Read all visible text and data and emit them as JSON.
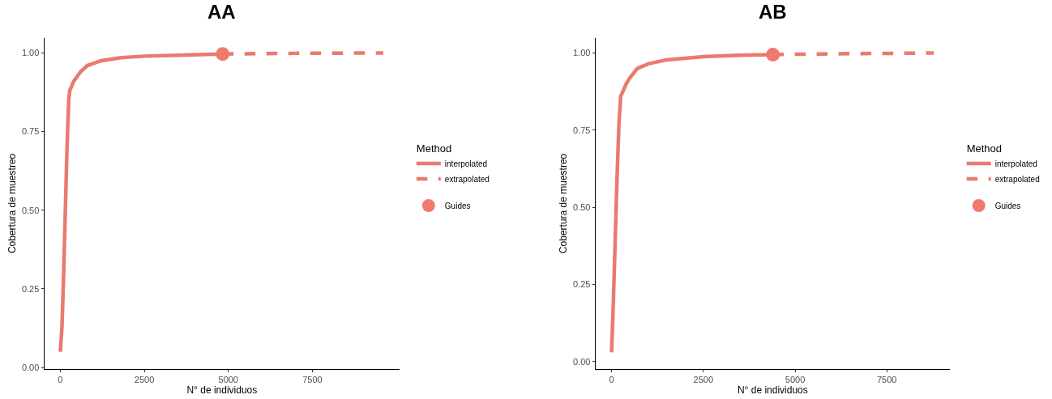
{
  "chart_data": [
    {
      "type": "line",
      "title": "AA",
      "xlabel": "N° de individuos",
      "ylabel": "Cobertura de muestreo",
      "legend_title": "Method",
      "legend": "right",
      "xlim": [
        -480,
        10100
      ],
      "ylim": [
        -0.005,
        1.048
      ],
      "xticks": [
        0,
        2500,
        5000,
        7500
      ],
      "yticks": [
        {
          "value": 0,
          "label": "0.00"
        },
        {
          "value": 0.25,
          "label": "0.25"
        },
        {
          "value": 0.5,
          "label": "0.50"
        },
        {
          "value": 0.75,
          "label": "0.75"
        },
        {
          "value": 1,
          "label": "1.00"
        }
      ],
      "series": [
        {
          "name": "interpolated",
          "color": "#ea7a6e",
          "line_style": "solid",
          "x": [
            0,
            50,
            100,
            150,
            200,
            250,
            280,
            400,
            600,
            800,
            1200,
            1800,
            2500,
            3500,
            4830
          ],
          "values": [
            0.05,
            0.13,
            0.3,
            0.5,
            0.7,
            0.85,
            0.88,
            0.91,
            0.94,
            0.96,
            0.975,
            0.985,
            0.99,
            0.993,
            0.997
          ]
        },
        {
          "name": "extrapolated",
          "color": "#ea7a6e",
          "line_style": "dashed",
          "x": [
            4830,
            7000,
            9610
          ],
          "values": [
            0.997,
            0.999,
            1.0
          ]
        },
        {
          "name": "Guides",
          "type": "scatter",
          "marker": "circle",
          "color": "#f07a6e",
          "x": [
            4830
          ],
          "values": [
            0.997
          ]
        }
      ]
    },
    {
      "type": "line",
      "title": "AB",
      "xlabel": "N° de individuos",
      "ylabel": "Cobertura de muestreo",
      "legend_title": "Method",
      "legend": "right",
      "xlim": [
        -440,
        9220
      ],
      "ylim": [
        -0.024,
        1.049
      ],
      "xticks": [
        0,
        2500,
        5000,
        7500
      ],
      "yticks": [
        {
          "value": 0,
          "label": "0.00"
        },
        {
          "value": 0.25,
          "label": "0.25"
        },
        {
          "value": 0.5,
          "label": "0.50"
        },
        {
          "value": 0.75,
          "label": "0.75"
        },
        {
          "value": 1,
          "label": "1.00"
        }
      ],
      "series": [
        {
          "name": "interpolated",
          "color": "#ea7a6e",
          "line_style": "solid",
          "x": [
            0,
            50,
            100,
            150,
            200,
            250,
            400,
            500,
            700,
            1000,
            1500,
            2500,
            3500,
            4395
          ],
          "values": [
            0.03,
            0.2,
            0.4,
            0.6,
            0.77,
            0.86,
            0.9,
            0.92,
            0.95,
            0.965,
            0.978,
            0.988,
            0.993,
            0.995
          ]
        },
        {
          "name": "extrapolated",
          "color": "#ea7a6e",
          "line_style": "dashed",
          "x": [
            4395,
            6500,
            8780
          ],
          "values": [
            0.995,
            0.998,
            1.0
          ]
        },
        {
          "name": "Guides",
          "type": "scatter",
          "marker": "circle",
          "color": "#f07a6e",
          "x": [
            4395
          ],
          "values": [
            0.995
          ]
        }
      ]
    }
  ]
}
